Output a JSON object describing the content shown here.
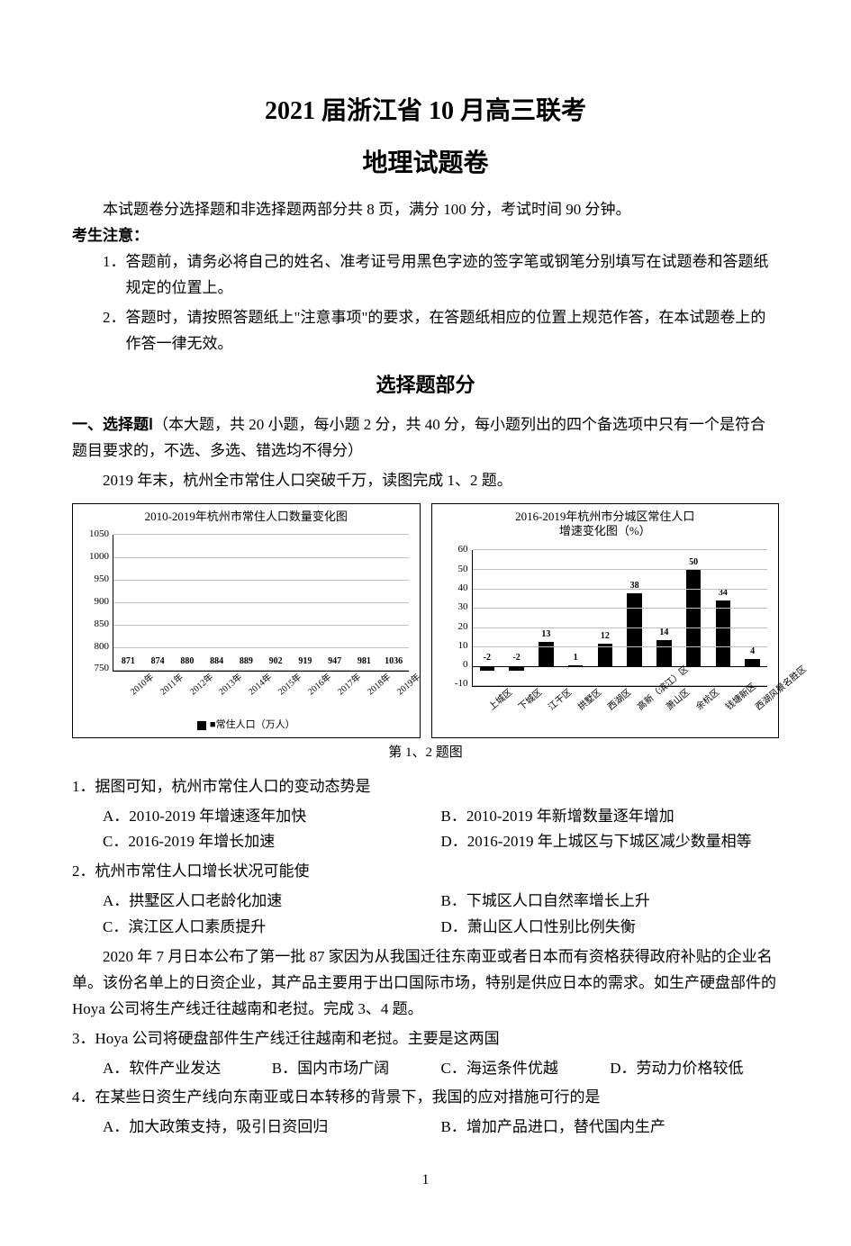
{
  "header": {
    "title_line1": "2021 届浙江省 10 月高三联考",
    "title_line2": "地理试题卷",
    "intro": "本试题卷分选择题和非选择题两部分共 8 页，满分 100 分，考试时间 90 分钟。",
    "notice_heading": "考生注意：",
    "notices": [
      "1．答题前，请务必将自己的姓名、准考证号用黑色字迹的签字笔或钢笔分别填写在试题卷和答题纸规定的位置上。",
      "2．答题时，请按照答题纸上\"注意事项\"的要求，在答题纸相应的位置上规范作答，在本试题卷上的作答一律无效。"
    ],
    "section_title": "选择题部分",
    "section1_intro_bold": "一、选择题Ⅰ",
    "section1_intro_rest": "（本大题，共 20 小题，每小题 2 分，共 40 分，每小题列出的四个备选项中只有一个是符合题目要求的，不选、多选、错选均不得分）",
    "passage1": "2019 年末，杭州全市常住人口突破千万，读图完成 1、2 题。"
  },
  "chart1": {
    "type": "bar",
    "title": "2010-2019年杭州市常住人口数量变化图",
    "categories": [
      "2010年",
      "2011年",
      "2012年",
      "2013年",
      "2014年",
      "2015年",
      "2016年",
      "2017年",
      "2018年",
      "2019年"
    ],
    "values": [
      871,
      874,
      880,
      884,
      889,
      902,
      919,
      947,
      981,
      1036
    ],
    "bar_color": "#000000",
    "value_label_fontsize": 10,
    "title_fontsize": 13,
    "ylim": [
      750,
      1050
    ],
    "yticks": [
      750,
      800,
      850,
      900,
      950,
      1000,
      1050
    ],
    "grid_color": "#bfbfbf",
    "background_color": "#ffffff",
    "bar_width": 0.6,
    "x_label_rotation": -40,
    "legend": "■常住人口（万人）"
  },
  "chart2": {
    "type": "bar",
    "title_line1": "2016-2019年杭州市分城区常住人口",
    "title_line2": "增速变化图（%）",
    "categories": [
      "上城区",
      "下城区",
      "江干区",
      "拱墅区",
      "西湖区",
      "高新（滨江）区",
      "萧山区",
      "余杭区",
      "钱塘新区",
      "西湖风景名胜区"
    ],
    "values": [
      -2,
      -2,
      13,
      1,
      12,
      38,
      14,
      50,
      34,
      4
    ],
    "bar_color": "#000000",
    "value_label_fontsize": 10,
    "title_fontsize": 13,
    "ylim": [
      -10,
      60
    ],
    "yticks": [
      -10,
      0,
      10,
      20,
      30,
      40,
      50,
      60
    ],
    "grid_color": "#bfbfbf",
    "background_color": "#ffffff",
    "bar_width": 0.5,
    "x_label_rotation": -40
  },
  "chart_caption": "第 1、2 题图",
  "questions": [
    {
      "num": "1",
      "stem": "据图可知，杭州市常住人口的变动态势是",
      "opts": [
        "A．2010-2019 年增速逐年加快",
        "B．2010-2019 年新增数量逐年增加",
        "C．2016-2019 年增长加速",
        "D．2016-2019 年上城区与下城区减少数量相等"
      ],
      "layout": "half"
    },
    {
      "num": "2",
      "stem": "杭州市常住人口增长状况可能使",
      "opts": [
        "A．拱墅区人口老龄化加速",
        "B．下城区人口自然率增长上升",
        "C．滨江区人口素质提升",
        "D．萧山区人口性别比例失衡"
      ],
      "layout": "half"
    }
  ],
  "passage2": "2020 年 7 月日本公布了第一批 87 家因为从我国迁往东南亚或者日本而有资格获得政府补贴的企业名单。该份名单上的日资企业，其产品主要用于出口国际市场，特别是供应日本的需求。如生产硬盘部件的 Hoya 公司将生产线迁往越南和老挝。完成 3、4 题。",
  "questions2": [
    {
      "num": "3",
      "stem": "Hoya 公司将硬盘部件生产线迁往越南和老挝。主要是这两国",
      "opts": [
        "A．软件产业发达",
        "B．国内市场广阔",
        "C．海运条件优越",
        "D．劳动力价格较低"
      ],
      "layout": "quarter"
    },
    {
      "num": "4",
      "stem": "在某些日资生产线向东南亚或日本转移的背景下，我国的应对措施可行的是",
      "opts": [
        "A．加大政策支持，吸引日资回归",
        "B．增加产品进口，替代国内生产"
      ],
      "layout": "half"
    }
  ],
  "page_number": "1"
}
